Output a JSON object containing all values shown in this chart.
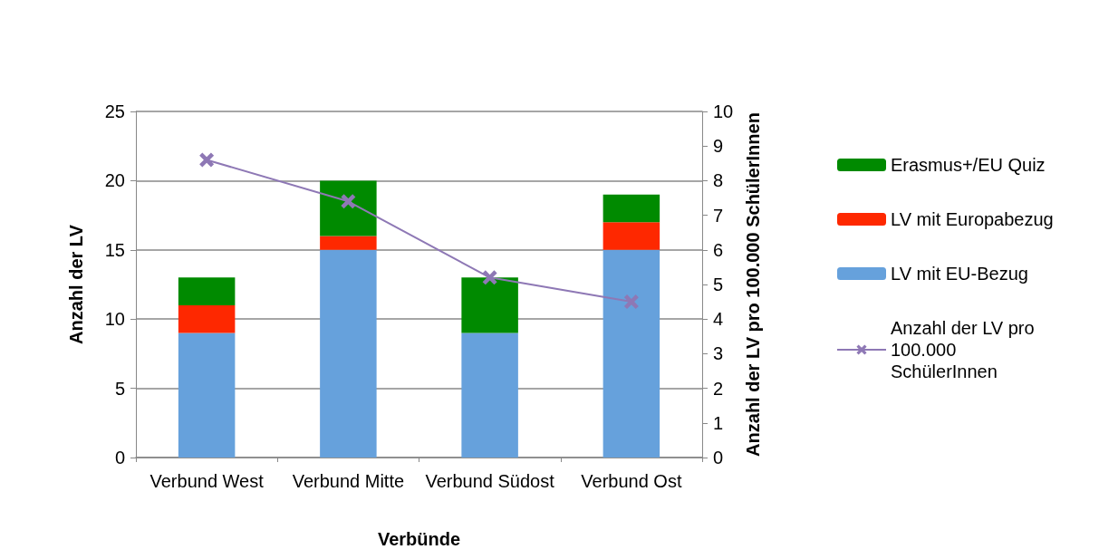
{
  "chart_data": {
    "type": "bar",
    "stacked": true,
    "xlabel": "Verbünde",
    "ylabel": "Anzahl der LV",
    "y2label": "Anzahl der LV pro 100.000 SchülerInnen",
    "categories": [
      "Verbund West",
      "Verbund Mitte",
      "Verbund Südost",
      "Verbund Ost"
    ],
    "series": [
      {
        "name": "LV mit EU-Bezug",
        "color": "#66a1dc",
        "values": [
          9,
          15,
          9,
          15
        ]
      },
      {
        "name": "LV mit Europabezug",
        "color": "#fe2800",
        "values": [
          2,
          1,
          0,
          2
        ]
      },
      {
        "name": "Erasmus+/EU Quiz",
        "color": "#008a00",
        "values": [
          2,
          4,
          4,
          2
        ]
      },
      {
        "name": "Anzahl der LV pro 100.000 SchülerInnen",
        "type": "line",
        "axis": "y2",
        "color": "#8e78b5",
        "marker": "cross",
        "values": [
          8.6,
          7.4,
          5.2,
          4.5
        ]
      }
    ],
    "ylim": [
      0,
      25
    ],
    "yticks": [
      0,
      5,
      10,
      15,
      20,
      25
    ],
    "y2lim": [
      0,
      10
    ],
    "y2ticks": [
      0,
      1,
      2,
      3,
      4,
      5,
      6,
      7,
      8,
      9,
      10
    ],
    "grid": "y",
    "legend": "right"
  }
}
